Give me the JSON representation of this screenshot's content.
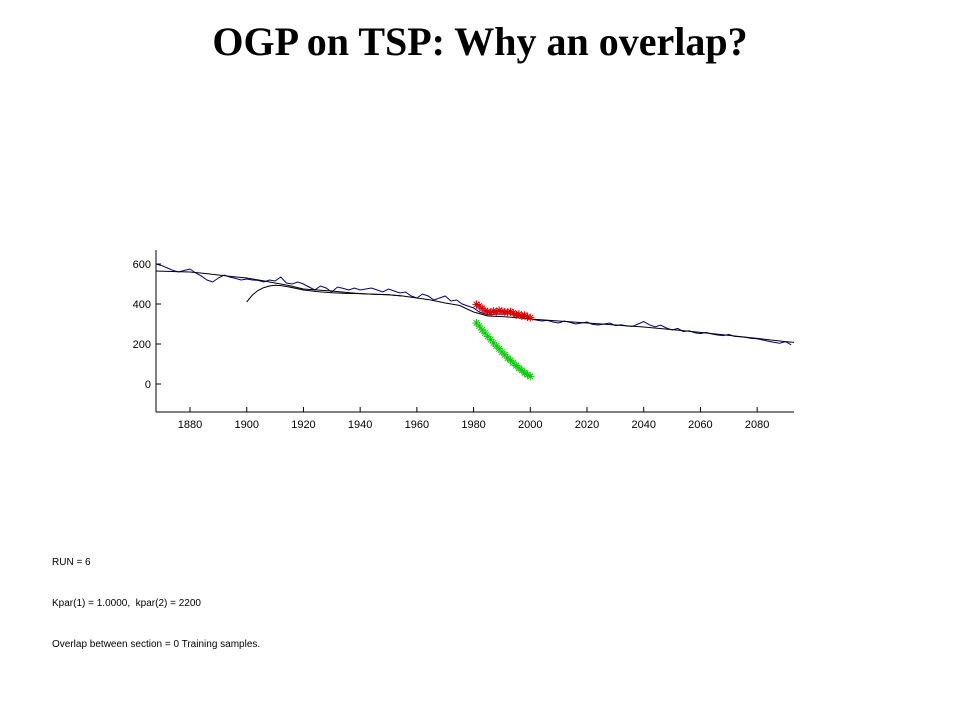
{
  "page": {
    "title": "OGP on TSP: Why an overlap?",
    "notes": [
      "RUN = 6",
      "Kpar(1) = 1.0000,  kpar(2) = 2200",
      "Overlap between section = 0 Training samples."
    ]
  },
  "chart_data": {
    "type": "line",
    "title": "",
    "xlabel": "",
    "ylabel": "",
    "xlim": [
      1868,
      2093
    ],
    "ylim": [
      -140,
      670
    ],
    "xticks": [
      1880,
      1900,
      1920,
      1940,
      1960,
      1980,
      2000,
      2020,
      2040,
      2060,
      2080
    ],
    "yticks": [
      0,
      200,
      400,
      600
    ],
    "grid": false,
    "series": [
      {
        "color": "#000080",
        "style": "line",
        "x": [
          1868,
          1870,
          1872,
          1874,
          1876,
          1878,
          1880,
          1882,
          1884,
          1886,
          1888,
          1890,
          1892,
          1894,
          1896,
          1898,
          1900,
          1902,
          1904,
          1906,
          1908,
          1910,
          1912,
          1914,
          1916,
          1918,
          1920,
          1922,
          1924,
          1926,
          1928,
          1930,
          1932,
          1934,
          1936,
          1938,
          1940,
          1942,
          1944,
          1946,
          1948,
          1950,
          1952,
          1954,
          1956,
          1958,
          1960,
          1962,
          1964,
          1966,
          1968,
          1970,
          1972,
          1974,
          1976,
          1978,
          1980,
          1982,
          1984,
          1986,
          1988,
          1990,
          1992,
          1994,
          1996,
          1998,
          2000,
          2002,
          2004,
          2006,
          2008,
          2010,
          2012,
          2014,
          2016,
          2018,
          2020,
          2022,
          2024,
          2026,
          2028,
          2030,
          2032,
          2034,
          2036,
          2038,
          2040,
          2042,
          2044,
          2046,
          2048,
          2050,
          2052,
          2054,
          2056,
          2058,
          2060,
          2062,
          2064,
          2066,
          2068,
          2070,
          2072,
          2074,
          2076,
          2078,
          2080,
          2082,
          2084,
          2086,
          2088,
          2090,
          2092
        ],
        "y": [
          600,
          592,
          580,
          568,
          560,
          568,
          575,
          555,
          540,
          520,
          510,
          530,
          545,
          535,
          528,
          520,
          525,
          520,
          518,
          510,
          520,
          515,
          535,
          505,
          500,
          510,
          500,
          485,
          470,
          490,
          480,
          460,
          485,
          478,
          470,
          480,
          470,
          475,
          480,
          470,
          460,
          475,
          465,
          455,
          460,
          440,
          430,
          450,
          440,
          420,
          430,
          440,
          415,
          420,
          400,
          390,
          380,
          360,
          350,
          345,
          350,
          348,
          352,
          345,
          338,
          340,
          325,
          320,
          315,
          318,
          310,
          305,
          315,
          308,
          300,
          305,
          310,
          298,
          295,
          300,
          305,
          292,
          296,
          290,
          288,
          300,
          312,
          296,
          286,
          294,
          280,
          270,
          278,
          262,
          266,
          256,
          252,
          258,
          250,
          245,
          242,
          248,
          238,
          236,
          233,
          228,
          226,
          220,
          214,
          208,
          204,
          212,
          196
        ]
      },
      {
        "color": "#000000",
        "style": "line",
        "x": [
          1868,
          1875,
          1880,
          1885,
          1890,
          1895,
          1900,
          1905,
          1910,
          1915,
          1920,
          1925,
          1930,
          1935,
          1940,
          1945,
          1950,
          1955,
          1960,
          1965,
          1970,
          1975,
          1980,
          1985,
          1990,
          1995,
          2000,
          2010,
          2020,
          2030,
          2040,
          2050,
          2060,
          2070,
          2080,
          2090,
          2093
        ],
        "y": [
          565,
          562,
          560,
          553,
          545,
          537,
          530,
          518,
          505,
          492,
          475,
          470,
          465,
          458,
          452,
          449,
          446,
          440,
          430,
          420,
          405,
          393,
          360,
          340,
          337,
          332,
          325,
          315,
          305,
          295,
          285,
          272,
          258,
          243,
          228,
          212,
          208
        ]
      },
      {
        "color": "#000000",
        "style": "line",
        "x": [
          1900,
          1902,
          1904,
          1906,
          1908,
          1910,
          1912,
          1915,
          1920,
          1925,
          1930,
          1935,
          1940,
          1945,
          1950,
          1955
        ],
        "y": [
          410,
          445,
          468,
          482,
          490,
          494,
          492,
          485,
          470,
          462,
          456,
          453,
          452,
          449,
          446,
          440
        ]
      },
      {
        "color": "#dd0000",
        "style": "marker",
        "marker": "*",
        "x": [
          1981,
          1982,
          1983,
          1984,
          1985,
          1986,
          1987,
          1988,
          1989,
          1990,
          1991,
          1992,
          1993,
          1994,
          1995,
          1996,
          1997,
          1998,
          1999,
          2000
        ],
        "y": [
          398,
          390,
          378,
          365,
          362,
          358,
          365,
          360,
          368,
          363,
          360,
          358,
          362,
          355,
          345,
          350,
          340,
          344,
          335,
          332
        ]
      },
      {
        "color": "#00cc00",
        "style": "marker",
        "marker": "*",
        "x": [
          1981,
          1982,
          1983,
          1984,
          1985,
          1986,
          1987,
          1988,
          1989,
          1990,
          1991,
          1992,
          1993,
          1994,
          1995,
          1996,
          1997,
          1998,
          1999,
          2000
        ],
        "y": [
          305,
          290,
          270,
          255,
          238,
          222,
          205,
          190,
          176,
          160,
          146,
          130,
          118,
          105,
          92,
          80,
          68,
          56,
          46,
          38
        ]
      }
    ]
  }
}
